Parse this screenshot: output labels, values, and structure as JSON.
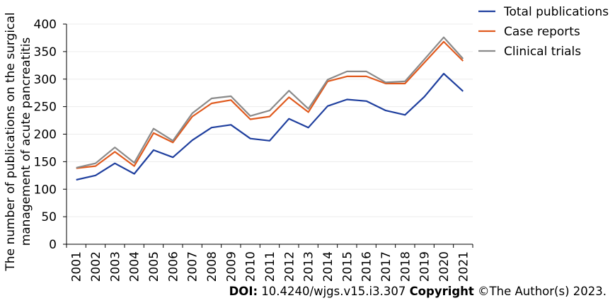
{
  "chart_data": {
    "type": "line",
    "ylabel_lines": [
      "The number of publications on the surgical",
      "management of acute pancreatitis"
    ],
    "xlabel": "",
    "x": [
      "2001",
      "2002",
      "2003",
      "2004",
      "2005",
      "2006",
      "2007",
      "2008",
      "2009",
      "2010",
      "2011",
      "2012",
      "2013",
      "2014",
      "2015",
      "2016",
      "2017",
      "2018",
      "2019",
      "2020",
      "2021"
    ],
    "ylim": [
      0,
      400
    ],
    "yticks": [
      0,
      50,
      100,
      150,
      200,
      250,
      300,
      350,
      400
    ],
    "grid": true,
    "legend_position": "top-right",
    "series": [
      {
        "name": "Total publications",
        "color": "#1f3f9e",
        "values": [
          117,
          125,
          147,
          128,
          171,
          158,
          189,
          212,
          217,
          192,
          188,
          228,
          212,
          251,
          263,
          260,
          243,
          235,
          268,
          310,
          278
        ]
      },
      {
        "name": "Case reports",
        "color": "#e05a1e",
        "values": [
          138,
          142,
          168,
          142,
          202,
          185,
          232,
          256,
          262,
          227,
          232,
          267,
          240,
          296,
          305,
          305,
          292,
          292,
          330,
          368,
          333
        ]
      },
      {
        "name": "Clinical trials",
        "color": "#8a8a8a",
        "values": [
          139,
          147,
          176,
          148,
          210,
          188,
          238,
          265,
          269,
          233,
          243,
          279,
          246,
          299,
          314,
          314,
          294,
          296,
          336,
          376,
          337
        ]
      }
    ]
  },
  "footer": {
    "doi_label": "DOI:",
    "doi_value": " 10.4240/wjgs.v15.i3.307 ",
    "copyright_label": "Copyright",
    "copyright_value": " ©The Author(s) 2023."
  }
}
